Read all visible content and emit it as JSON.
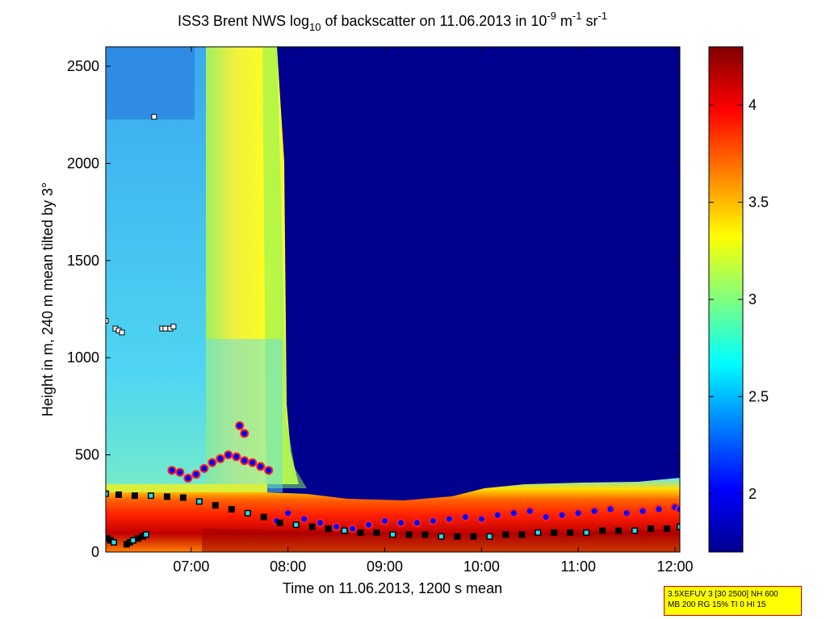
{
  "chart_data": {
    "type": "heatmap",
    "title": {
      "prefix": "ISS3 Brent NWS log",
      "log_base": "10",
      "middle": " of backscatter on 11.06.2013 in 10",
      "exp1": "-9",
      "unit1": " m",
      "exp2": "-1",
      "unit2": " sr",
      "exp3": "-1"
    },
    "xlabel": "Time on 11.06.2013, 1200 s mean",
    "ylabel": "Height in m, 240 m mean tilted by 3°",
    "x_axis": {
      "range": [
        "06:07",
        "12:03"
      ],
      "ticks": [
        "07:00",
        "08:00",
        "09:00",
        "10:00",
        "11:00",
        "12:00"
      ]
    },
    "y_axis": {
      "range": [
        0,
        2600
      ],
      "ticks": [
        0,
        500,
        1000,
        1500,
        2000,
        2500
      ]
    },
    "colorbar": {
      "range": [
        1.7,
        4.3
      ],
      "ticks": [
        "2",
        "2.5",
        "3",
        "3.5",
        "4"
      ],
      "colormap": "jet"
    },
    "regions": [
      {
        "name": "early-hours-layer",
        "x_range": [
          "06:07",
          "07:15"
        ],
        "height_top": 2600,
        "value": 2.5
      },
      {
        "name": "yellow-column",
        "x_range": [
          "07:15",
          "07:50"
        ],
        "height_top": 2600,
        "value": 3.1
      },
      {
        "name": "clear-upper-air",
        "x_range": [
          "07:55",
          "12:03"
        ],
        "height_bottom": 350,
        "value": 1.7
      },
      {
        "name": "boundary-layer",
        "x_range": [
          "06:07",
          "12:03"
        ],
        "height_top": 350,
        "value": 3.8
      }
    ],
    "series": [
      {
        "marker": "circle-blue-red",
        "x": [
          "06:48",
          "06:53",
          "06:58",
          "07:03",
          "07:08",
          "07:13",
          "07:18",
          "07:23",
          "07:28",
          "07:33",
          "07:38",
          "07:43",
          "07:48",
          "07:30",
          "07:33",
          "07:53",
          "08:00",
          "08:10",
          "08:20",
          "08:30",
          "08:40",
          "08:50",
          "09:00",
          "09:10",
          "09:20",
          "09:30",
          "09:40",
          "09:50",
          "10:00",
          "10:10",
          "10:20",
          "10:30",
          "10:40",
          "10:50",
          "11:00",
          "11:10",
          "11:20",
          "11:30",
          "11:40",
          "11:50",
          "12:00",
          "12:03"
        ],
        "y": [
          420,
          410,
          380,
          400,
          430,
          460,
          480,
          500,
          490,
          470,
          460,
          440,
          420,
          650,
          610,
          160,
          200,
          170,
          150,
          130,
          120,
          140,
          160,
          150,
          150,
          160,
          170,
          180,
          170,
          190,
          200,
          210,
          180,
          190,
          200,
          210,
          220,
          200,
          210,
          220,
          230,
          220
        ]
      },
      {
        "marker": "square-black-cyan",
        "x": [
          "06:07",
          "06:15",
          "06:25",
          "06:35",
          "06:45",
          "06:55",
          "07:05",
          "07:15",
          "07:25",
          "07:35",
          "07:45",
          "07:55",
          "08:05",
          "08:15",
          "08:25",
          "08:35",
          "08:45",
          "08:55",
          "09:05",
          "09:15",
          "09:25",
          "09:35",
          "09:45",
          "09:55",
          "10:05",
          "10:15",
          "10:25",
          "10:35",
          "10:45",
          "10:55",
          "11:05",
          "11:15",
          "11:25",
          "11:35",
          "11:45",
          "11:55",
          "12:03",
          "06:08",
          "06:10",
          "06:12",
          "06:20",
          "06:22",
          "06:24",
          "06:27",
          "06:30",
          "06:32"
        ],
        "y": [
          300,
          295,
          290,
          290,
          285,
          280,
          260,
          240,
          220,
          200,
          180,
          150,
          140,
          130,
          120,
          110,
          100,
          100,
          90,
          90,
          90,
          80,
          80,
          80,
          80,
          90,
          90,
          100,
          100,
          100,
          100,
          110,
          110,
          110,
          120,
          120,
          130,
          70,
          60,
          50,
          40,
          50,
          60,
          70,
          80,
          90
        ]
      },
      {
        "marker": "square-white",
        "x": [
          "06:07",
          "06:13",
          "06:15",
          "06:17",
          "06:37",
          "06:42",
          "06:44",
          "06:47",
          "06:49"
        ],
        "y": [
          1190,
          1150,
          1140,
          1130,
          2240,
          1150,
          1150,
          1150,
          1160
        ]
      }
    ]
  },
  "info_box": {
    "line1": "3.5XEFUV 3 [30 2500] NH 600",
    "line2": "MB 200 RG 15% TI 0 HI 15"
  }
}
